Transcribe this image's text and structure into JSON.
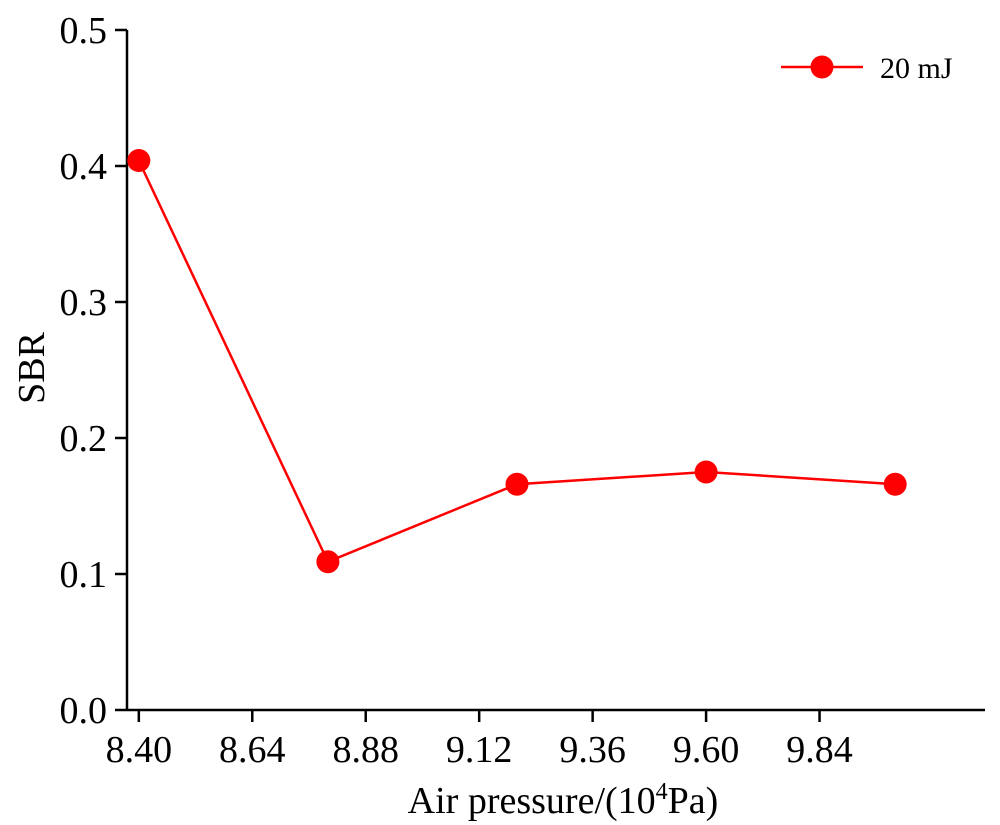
{
  "chart_data": {
    "type": "line",
    "title": "",
    "xlabel": "Air pressure/(10",
    "xlabel_superscript": "4",
    "xlabel_suffix": "Pa)",
    "ylabel": "SBR",
    "xlim": [
      8.375,
      10.19
    ],
    "ylim": [
      0.0,
      0.5
    ],
    "x_ticks": [
      "8.40",
      "8.64",
      "8.88",
      "9.12",
      "9.36",
      "9.60",
      "9.84"
    ],
    "y_ticks": [
      "0.0",
      "0.1",
      "0.2",
      "0.3",
      "0.4",
      "0.5"
    ],
    "grid": false,
    "legend_position": "top-right",
    "series": [
      {
        "name": "20 mJ",
        "color": "#ff0000",
        "marker": "circle",
        "x": [
          8.4,
          8.8,
          9.2,
          9.6,
          10.0
        ],
        "y": [
          0.404,
          0.109,
          0.166,
          0.175,
          0.166
        ]
      }
    ]
  }
}
